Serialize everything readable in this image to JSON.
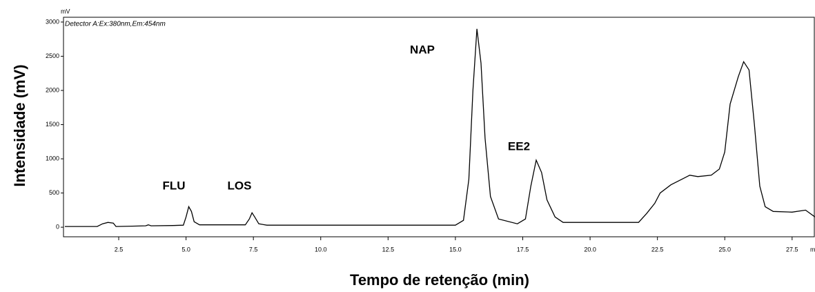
{
  "chart_data": {
    "type": "line",
    "annotations": [
      "Detector A:Ex:380nm,Em:454nm",
      "FLU",
      "LOS",
      "NAP",
      "EE2"
    ],
    "y_unit": "mV",
    "x_unit": "min",
    "ylabel": "Intensidade (mV)",
    "xlabel": "Tempo de retenção (min)",
    "xlim": [
      0.45,
      28.35
    ],
    "ylim": [
      -140,
      3070
    ],
    "xticks": [
      2.5,
      {
        "value": 5,
        "label": "5.0"
      },
      7.5,
      {
        "value": 10,
        "label": "10.0"
      },
      12.5,
      {
        "value": 15,
        "label": "15.0"
      },
      17.5,
      {
        "value": 20,
        "label": "20.0"
      },
      22.5,
      {
        "value": 25,
        "label": "25.0"
      },
      27.5
    ],
    "yticks": [
      0,
      500,
      1000,
      1500,
      2000,
      2500,
      3000
    ],
    "series": [
      {
        "color": "#000000",
        "x": [
          0.5,
          1.7,
          1.9,
          2.1,
          2.3,
          2.4,
          3.0,
          3.5,
          3.6,
          3.7,
          4.5,
          4.9,
          5.0,
          5.1,
          5.2,
          5.3,
          5.5,
          7.2,
          7.35,
          7.45,
          7.55,
          7.7,
          8.0,
          15.0,
          15.3,
          15.5,
          15.65,
          15.8,
          15.95,
          16.1,
          16.3,
          16.6,
          17.3,
          17.6,
          17.8,
          18.0,
          18.2,
          18.4,
          18.7,
          19.0,
          21.8,
          22.1,
          22.4,
          22.6,
          23.0,
          23.5,
          23.7,
          24.0,
          24.5,
          24.8,
          25.0,
          25.2,
          25.5,
          25.7,
          25.9,
          26.1,
          26.3,
          26.5,
          26.8,
          27.5,
          28.0,
          28.35
        ],
        "values": [
          10,
          10,
          50,
          70,
          60,
          10,
          15,
          20,
          35,
          20,
          25,
          30,
          150,
          300,
          230,
          80,
          35,
          35,
          120,
          210,
          150,
          50,
          30,
          30,
          100,
          700,
          2000,
          2900,
          2400,
          1300,
          450,
          120,
          50,
          120,
          600,
          980,
          800,
          400,
          150,
          70,
          70,
          200,
          350,
          500,
          620,
          720,
          760,
          740,
          760,
          850,
          1100,
          1800,
          2200,
          2420,
          2300,
          1500,
          600,
          300,
          230,
          220,
          250,
          150
        ]
      }
    ]
  }
}
